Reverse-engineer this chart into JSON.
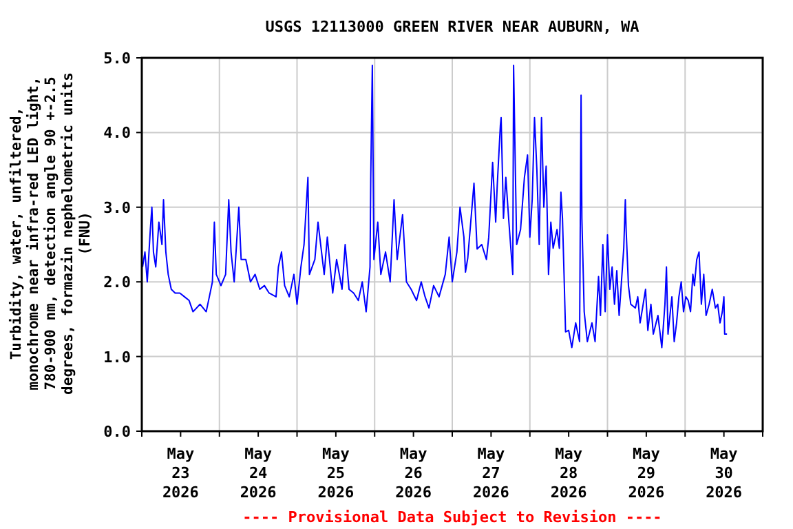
{
  "chart_data": {
    "type": "line",
    "title": "USGS 12113000 GREEN RIVER NEAR AUBURN, WA",
    "ylabel": "Turbidity, water, unfiltered, monochrome near infra-red LED light, 780-900 nm, detection angle 90 +-2.5 degrees, formazin nephelometric units (FNU)",
    "annotations": [
      "---- Provisional Data Subject to Revision ----"
    ],
    "xlim": [
      "2026-05-23T00:00",
      "2026-05-31T00:00"
    ],
    "xticks": [
      {
        "value": "2026-05-23T00:00",
        "label": null
      },
      {
        "value": "2026-05-23T12:00",
        "label": "May 23 2026"
      },
      {
        "value": "2026-05-24T00:00",
        "label": null
      },
      {
        "value": "2026-05-24T12:00",
        "label": "May 24 2026"
      },
      {
        "value": "2026-05-25T00:00",
        "label": null
      },
      {
        "value": "2026-05-25T12:00",
        "label": "May 25 2026"
      },
      {
        "value": "2026-05-26T00:00",
        "label": null
      },
      {
        "value": "2026-05-26T12:00",
        "label": "May 26 2026"
      },
      {
        "value": "2026-05-27T00:00",
        "label": null
      },
      {
        "value": "2026-05-27T12:00",
        "label": "May 27 2026"
      },
      {
        "value": "2026-05-28T00:00",
        "label": null
      },
      {
        "value": "2026-05-28T12:00",
        "label": "May 28 2026"
      },
      {
        "value": "2026-05-29T00:00",
        "label": null
      },
      {
        "value": "2026-05-29T12:00",
        "label": "May 29 2026"
      },
      {
        "value": "2026-05-30T00:00",
        "label": null
      },
      {
        "value": "2026-05-30T12:00",
        "label": "May 30 2026"
      },
      {
        "value": "2026-05-31T00:00",
        "label": null
      }
    ],
    "ylim": [
      0,
      5
    ],
    "yticks": [
      {
        "value": 0,
        "label": "0.0"
      },
      {
        "value": 1,
        "label": "1.0"
      },
      {
        "value": 2,
        "label": "2.0"
      },
      {
        "value": 3,
        "label": "3.0"
      },
      {
        "value": 4,
        "label": "4.0"
      },
      {
        "value": 5,
        "label": "5.0"
      }
    ],
    "grid": true,
    "marker": "none",
    "line_style": "solid",
    "x": [
      "2026-05-23T00:14",
      "2026-05-23T00:58",
      "2026-05-23T01:41",
      "2026-05-23T02:38",
      "2026-05-23T03:07",
      "2026-05-23T03:36",
      "2026-05-23T04:19",
      "2026-05-23T05:17",
      "2026-05-23T06:14",
      "2026-05-23T06:43",
      "2026-05-23T07:26",
      "2026-05-23T08:10",
      "2026-05-23T09:07",
      "2026-05-23T10:19",
      "2026-05-23T11:46",
      "2026-05-23T13:12",
      "2026-05-23T14:38",
      "2026-05-23T15:50",
      "2026-05-23T18:00",
      "2026-05-23T19:55",
      "2026-05-23T20:53",
      "2026-05-23T21:50",
      "2026-05-23T22:26",
      "2026-05-23T23:02",
      "2026-05-24T00:29",
      "2026-05-24T01:55",
      "2026-05-24T02:53",
      "2026-05-24T03:36",
      "2026-05-24T04:34",
      "2026-05-24T06:00",
      "2026-05-24T06:43",
      "2026-05-24T08:10",
      "2026-05-24T09:36",
      "2026-05-24T11:02",
      "2026-05-24T12:29",
      "2026-05-24T13:55",
      "2026-05-24T15:22",
      "2026-05-24T17:31",
      "2026-05-24T18:14",
      "2026-05-24T19:12",
      "2026-05-24T20:10",
      "2026-05-24T21:36",
      "2026-05-24T23:02",
      "2026-05-25T00:00",
      "2026-05-25T01:12",
      "2026-05-25T02:10",
      "2026-05-25T03:22",
      "2026-05-25T03:50",
      "2026-05-25T05:31",
      "2026-05-25T06:29",
      "2026-05-25T08:24",
      "2026-05-25T09:22",
      "2026-05-25T11:02",
      "2026-05-25T12:14",
      "2026-05-25T13:55",
      "2026-05-25T14:53",
      "2026-05-25T16:05",
      "2026-05-25T17:31",
      "2026-05-25T18:58",
      "2026-05-25T20:10",
      "2026-05-25T21:22",
      "2026-05-25T22:34",
      "2026-05-25T22:48",
      "2026-05-25T23:17",
      "2026-05-25T23:46",
      "2026-05-26T00:58",
      "2026-05-26T01:55",
      "2026-05-26T03:22",
      "2026-05-26T04:48",
      "2026-05-26T06:00",
      "2026-05-26T06:58",
      "2026-05-26T08:38",
      "2026-05-26T09:50",
      "2026-05-26T11:17",
      "2026-05-26T12:58",
      "2026-05-26T14:24",
      "2026-05-26T15:36",
      "2026-05-26T16:48",
      "2026-05-26T18:14",
      "2026-05-26T19:55",
      "2026-05-26T21:50",
      "2026-05-26T23:02",
      "2026-05-27T00:00",
      "2026-05-27T01:26",
      "2026-05-27T02:24",
      "2026-05-27T03:36",
      "2026-05-27T04:05",
      "2026-05-27T04:48",
      "2026-05-27T06:43",
      "2026-05-27T07:41",
      "2026-05-27T09:07",
      "2026-05-27T10:34",
      "2026-05-27T11:17",
      "2026-05-27T12:29",
      "2026-05-27T13:26",
      "2026-05-27T13:55",
      "2026-05-27T14:53",
      "2026-05-27T15:07",
      "2026-05-27T15:50",
      "2026-05-27T16:34",
      "2026-05-27T17:31",
      "2026-05-27T18:43",
      "2026-05-27T18:58",
      "2026-05-27T19:26",
      "2026-05-27T19:55",
      "2026-05-27T21:07",
      "2026-05-27T22:19",
      "2026-05-27T23:17",
      "2026-05-28T00:00",
      "2026-05-28T00:43",
      "2026-05-28T01:26",
      "2026-05-28T02:10",
      "2026-05-28T02:53",
      "2026-05-28T03:36",
      "2026-05-28T04:19",
      "2026-05-28T05:02",
      "2026-05-28T05:46",
      "2026-05-28T06:29",
      "2026-05-28T07:12",
      "2026-05-28T08:24",
      "2026-05-28T09:07",
      "2026-05-28T09:36",
      "2026-05-28T10:05",
      "2026-05-28T10:34",
      "2026-05-28T11:02",
      "2026-05-28T12:00",
      "2026-05-28T12:58",
      "2026-05-28T14:10",
      "2026-05-28T15:22",
      "2026-05-28T15:50",
      "2026-05-28T16:05",
      "2026-05-28T16:48",
      "2026-05-28T17:46",
      "2026-05-28T19:12",
      "2026-05-28T20:10",
      "2026-05-28T21:14",
      "2026-05-28T21:50",
      "2026-05-28T22:34",
      "2026-05-28T23:17",
      "2026-05-29T00:00",
      "2026-05-29T00:43",
      "2026-05-29T01:26",
      "2026-05-29T02:10",
      "2026-05-29T02:53",
      "2026-05-29T03:36",
      "2026-05-29T04:19",
      "2026-05-29T05:02",
      "2026-05-29T05:31",
      "2026-05-29T05:46",
      "2026-05-29T06:29",
      "2026-05-29T07:12",
      "2026-05-29T08:38",
      "2026-05-29T09:22",
      "2026-05-29T10:05",
      "2026-05-29T11:02",
      "2026-05-29T11:46",
      "2026-05-29T12:29",
      "2026-05-29T13:26",
      "2026-05-29T14:10",
      "2026-05-29T15:36",
      "2026-05-29T16:48",
      "2026-05-29T17:46",
      "2026-05-29T18:14",
      "2026-05-29T18:43",
      "2026-05-29T19:55",
      "2026-05-29T20:38",
      "2026-05-29T21:22",
      "2026-05-29T22:05",
      "2026-05-29T22:48",
      "2026-05-29T23:31",
      "2026-05-30T00:14",
      "2026-05-30T00:58",
      "2026-05-30T01:41",
      "2026-05-30T02:24",
      "2026-05-30T02:53",
      "2026-05-30T03:36",
      "2026-05-30T04:19",
      "2026-05-30T05:02",
      "2026-05-30T05:46",
      "2026-05-30T06:29",
      "2026-05-30T07:26",
      "2026-05-30T08:24",
      "2026-05-30T09:22",
      "2026-05-30T10:05",
      "2026-05-30T10:48",
      "2026-05-30T11:31",
      "2026-05-30T12:00",
      "2026-05-30T12:14",
      "2026-05-30T12:58"
    ],
    "series": [
      {
        "color": "#0000ff",
        "values": [
          2.2,
          2.4,
          2.0,
          2.7,
          3.0,
          2.4,
          2.2,
          2.8,
          2.5,
          3.1,
          2.4,
          2.1,
          1.9,
          1.85,
          1.85,
          1.8,
          1.75,
          1.6,
          1.7,
          1.6,
          1.8,
          2.0,
          2.8,
          2.1,
          1.95,
          2.1,
          3.1,
          2.4,
          2.0,
          3.0,
          2.3,
          2.3,
          2.0,
          2.1,
          1.9,
          1.95,
          1.85,
          1.8,
          2.2,
          2.4,
          1.95,
          1.8,
          2.1,
          1.7,
          2.2,
          2.5,
          3.4,
          2.1,
          2.3,
          2.8,
          2.1,
          2.6,
          1.85,
          2.3,
          1.9,
          2.5,
          1.9,
          1.85,
          1.75,
          2.0,
          1.6,
          2.2,
          3.4,
          4.9,
          2.3,
          2.8,
          2.1,
          2.4,
          2.0,
          3.1,
          2.3,
          2.9,
          2.0,
          1.9,
          1.75,
          2.0,
          1.8,
          1.65,
          1.95,
          1.8,
          2.1,
          2.6,
          2.0,
          2.4,
          3.0,
          2.6,
          2.13,
          2.32,
          3.32,
          2.44,
          2.5,
          2.3,
          2.6,
          3.6,
          2.8,
          3.3,
          4.1,
          4.2,
          2.85,
          3.4,
          2.8,
          2.1,
          4.9,
          3.7,
          2.5,
          2.7,
          3.4,
          3.7,
          2.6,
          3.1,
          4.2,
          3.5,
          2.5,
          4.2,
          3.0,
          3.55,
          2.1,
          2.8,
          2.45,
          2.7,
          2.45,
          3.2,
          2.85,
          2.1,
          1.33,
          1.35,
          1.12,
          1.45,
          1.2,
          4.5,
          2.85,
          1.6,
          1.2,
          1.45,
          1.2,
          2.07,
          1.55,
          2.5,
          1.6,
          2.63,
          1.9,
          2.2,
          1.7,
          2.15,
          1.55,
          2.0,
          2.45,
          3.1,
          2.7,
          1.95,
          1.7,
          1.65,
          1.8,
          1.45,
          1.7,
          1.9,
          1.35,
          1.7,
          1.3,
          1.55,
          1.12,
          1.7,
          2.2,
          1.3,
          1.8,
          1.2,
          1.45,
          1.8,
          2.0,
          1.6,
          1.8,
          1.75,
          1.6,
          2.1,
          1.95,
          2.3,
          2.4,
          1.7,
          2.1,
          1.55,
          1.7,
          1.9,
          1.65,
          1.7,
          1.45,
          1.6,
          1.8,
          1.3,
          1.3
        ]
      }
    ]
  }
}
